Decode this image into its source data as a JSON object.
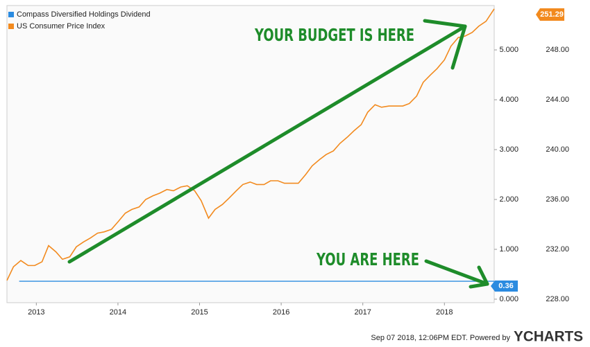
{
  "chart_data": {
    "type": "line",
    "series": [
      {
        "name": "Compass Diversified Holdings Dividend",
        "color": "#2b8be0",
        "axis": "y",
        "x": [
          2012.79,
          2018.61
        ],
        "values": [
          0.36,
          0.36
        ]
      },
      {
        "name": "US Consumer Price Index",
        "color": "#f28a1e",
        "axis": "y2",
        "x": [
          2012.64,
          2012.72,
          2012.81,
          2012.9,
          2012.98,
          2013.07,
          2013.15,
          2013.24,
          2013.32,
          2013.41,
          2013.49,
          2013.58,
          2013.66,
          2013.75,
          2013.83,
          2013.92,
          2014.0,
          2014.09,
          2014.17,
          2014.26,
          2014.34,
          2014.43,
          2014.51,
          2014.6,
          2014.68,
          2014.77,
          2014.85,
          2014.94,
          2015.02,
          2015.11,
          2015.19,
          2015.28,
          2015.36,
          2015.45,
          2015.53,
          2015.62,
          2015.7,
          2015.79,
          2015.87,
          2015.96,
          2016.04,
          2016.13,
          2016.21,
          2016.3,
          2016.38,
          2016.47,
          2016.55,
          2016.64,
          2016.72,
          2016.81,
          2016.89,
          2016.98,
          2017.06,
          2017.15,
          2017.23,
          2017.32,
          2017.4,
          2017.49,
          2017.57,
          2017.66,
          2017.74,
          2017.83,
          2017.91,
          2018.0,
          2018.08,
          2018.17,
          2018.25,
          2018.34,
          2018.42,
          2018.51,
          2018.61
        ],
        "values": [
          229.5,
          230.6,
          231.1,
          230.7,
          230.7,
          231.0,
          232.3,
          231.8,
          231.2,
          231.4,
          232.2,
          232.6,
          232.9,
          233.3,
          233.4,
          233.6,
          234.2,
          234.9,
          235.2,
          235.4,
          236.0,
          236.3,
          236.5,
          236.8,
          236.7,
          237.0,
          237.1,
          236.7,
          235.9,
          234.5,
          235.2,
          235.6,
          236.1,
          236.7,
          237.2,
          237.4,
          237.2,
          237.2,
          237.5,
          237.5,
          237.3,
          237.3,
          237.3,
          238.0,
          238.7,
          239.2,
          239.6,
          239.9,
          240.5,
          241.0,
          241.5,
          242.0,
          243.0,
          243.6,
          243.4,
          243.5,
          243.5,
          243.5,
          243.7,
          244.3,
          245.4,
          246.0,
          246.5,
          247.2,
          248.3,
          249.0,
          249.1,
          249.4,
          249.9,
          250.3,
          251.29
        ]
      }
    ],
    "xlim": [
      2012.64,
      2018.61
    ],
    "xticks": [
      2013,
      2014,
      2015,
      2016,
      2017,
      2018
    ],
    "ylim": [
      -0.07,
      5.89
    ],
    "yticks": [
      {
        "value": 0,
        "label": "0.000"
      },
      {
        "value": 1,
        "label": "1.000"
      },
      {
        "value": 2,
        "label": "2.000"
      },
      {
        "value": 3,
        "label": "3.000"
      },
      {
        "value": 4,
        "label": "4.000"
      },
      {
        "value": 5,
        "label": "5.000"
      }
    ],
    "y2lim": [
      227.72,
      251.56
    ],
    "y2ticks": [
      {
        "value": 228,
        "label": "228.00"
      },
      {
        "value": 232,
        "label": "232.00"
      },
      {
        "value": 236,
        "label": "236.00"
      },
      {
        "value": 240,
        "label": "240.00"
      },
      {
        "value": 244,
        "label": "244.00"
      },
      {
        "value": 248,
        "label": "248.00"
      }
    ],
    "annotations": [
      "YOUR BUDGET IS HERE",
      "YOU ARE HERE"
    ],
    "footer": "Sep 07 2018, 12:06PM EDT.  Powered by",
    "logo": "YCHARTS"
  }
}
